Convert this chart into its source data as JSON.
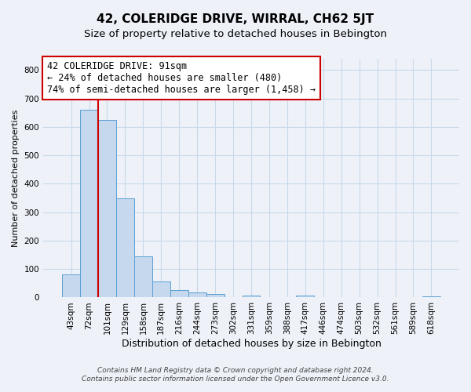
{
  "title": "42, COLERIDGE DRIVE, WIRRAL, CH62 5JT",
  "subtitle": "Size of property relative to detached houses in Bebington",
  "xlabel": "Distribution of detached houses by size in Bebington",
  "ylabel": "Number of detached properties",
  "bar_labels": [
    "43sqm",
    "72sqm",
    "101sqm",
    "129sqm",
    "158sqm",
    "187sqm",
    "216sqm",
    "244sqm",
    "273sqm",
    "302sqm",
    "331sqm",
    "359sqm",
    "388sqm",
    "417sqm",
    "446sqm",
    "474sqm",
    "503sqm",
    "532sqm",
    "561sqm",
    "589sqm",
    "618sqm"
  ],
  "bar_values": [
    82,
    660,
    625,
    348,
    145,
    57,
    26,
    18,
    12,
    0,
    7,
    0,
    0,
    7,
    0,
    0,
    0,
    0,
    0,
    0,
    5
  ],
  "bar_color": "#c5d8ed",
  "bar_edge_color": "#5a9fd4",
  "vline_position": 1.5,
  "vline_color": "#cc0000",
  "annotation_line1": "42 COLERIDGE DRIVE: 91sqm",
  "annotation_line2": "← 24% of detached houses are smaller (480)",
  "annotation_line3": "74% of semi-detached houses are larger (1,458) →",
  "annotation_box_color": "#ffffff",
  "annotation_box_edge_color": "#cc0000",
  "ylim": [
    0,
    840
  ],
  "yticks": [
    0,
    100,
    200,
    300,
    400,
    500,
    600,
    700,
    800
  ],
  "footer_line1": "Contains HM Land Registry data © Crown copyright and database right 2024.",
  "footer_line2": "Contains public sector information licensed under the Open Government Licence v3.0.",
  "background_color": "#eef2f8",
  "grid_color": "#c8d8ea",
  "title_fontsize": 11,
  "subtitle_fontsize": 9.5,
  "xlabel_fontsize": 9,
  "ylabel_fontsize": 8,
  "tick_fontsize": 7.5,
  "footer_fontsize": 6.5,
  "annotation_fontsize": 8.5
}
